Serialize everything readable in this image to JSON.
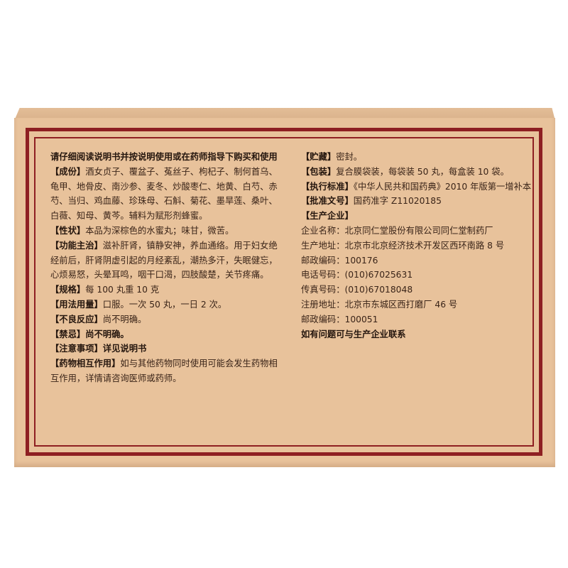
{
  "left": {
    "notice": "请仔细阅读说明书并按说明使用或在药师指导下购买和使用",
    "sections": [
      {
        "label": "【成份】",
        "text": "酒女贞子、覆盆子、菟丝子、枸杞子、制何首乌、龟甲、地骨皮、南沙参、麦冬、炒酸枣仁、地黄、白芍、赤芍、当归、鸡血藤、珍珠母、石斛、菊花、墨旱莲、桑叶、白薇、知母、黄芩。辅料为赋形剂蜂蜜。"
      },
      {
        "label": "【性状】",
        "text": "本品为深棕色的水蜜丸；味甘，微苦。"
      },
      {
        "label": "【功能主治】",
        "text": "滋补肝肾，镇静安神，养血通络。用于妇女绝经前后，肝肾阴虚引起的月经紊乱，潮热多汗，失眠健忘，心烦易怒，头晕耳鸣，咽干口渴，四肢酸楚，关节疼痛。"
      },
      {
        "label": "【规格】",
        "text": "每 100 丸重 10 克"
      },
      {
        "label": "【用法用量】",
        "text": "口服。一次 50 丸，一日 2 次。"
      },
      {
        "label": "【不良反应】",
        "text": "尚不明确。"
      },
      {
        "label": "【禁忌】",
        "text": "尚不明确。"
      },
      {
        "label": "【注意事项】",
        "text": "详见说明书"
      },
      {
        "label": "【药物相互作用】",
        "text": "如与其他药物同时使用可能会发生药物相互作用，详情请咨询医师或药师。"
      }
    ]
  },
  "right": {
    "sections": [
      {
        "label": "【贮藏】",
        "text": "密封。"
      },
      {
        "label": "【包装】",
        "text": "复合膜袋装，每袋装 50 丸，每盒装 10 袋。"
      },
      {
        "label": "【执行标准】",
        "text": "《中华人民共和国药典》2010 年版第一增补本"
      },
      {
        "label": "【批准文号】",
        "text": "国药准字 Z11020185"
      },
      {
        "label": "【生产企业】",
        "text": ""
      }
    ],
    "company": [
      {
        "label": "企业名称：",
        "value": "北京同仁堂股份有限公司同仁堂制药厂"
      },
      {
        "label": "生产地址：",
        "value": "北京市北京经济技术开发区西环南路 8 号"
      },
      {
        "label": "邮政编码：",
        "value": "100176"
      },
      {
        "label": "电话号码：",
        "value": "(010)67025631"
      },
      {
        "label": "传真号码：",
        "value": "(010)67018048"
      },
      {
        "label": "注册地址：",
        "value": "北京市东城区西打磨厂 46 号"
      },
      {
        "label": "邮政编码：",
        "value": "100051"
      }
    ],
    "footer": "如有问题可与生产企业联系"
  }
}
